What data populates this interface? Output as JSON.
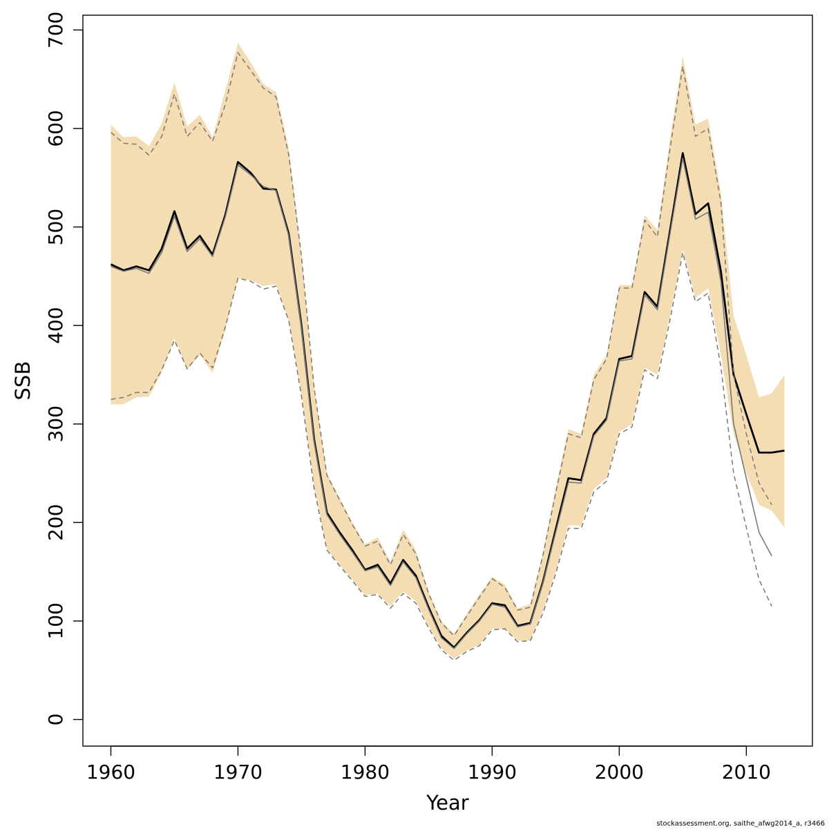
{
  "chart_data": {
    "type": "line",
    "xlabel": "Year",
    "ylabel": "SSB",
    "xlim": [
      1957.8,
      2015.2
    ],
    "ylim": [
      -27,
      715
    ],
    "x_ticks": [
      1960,
      1970,
      1980,
      1990,
      2000,
      2010
    ],
    "y_ticks": [
      0,
      100,
      200,
      300,
      400,
      500,
      600,
      700
    ],
    "grid": false,
    "legend": "none",
    "colors": {
      "band": "#f5ddb3",
      "current": "#000000",
      "previous": "#777777"
    },
    "series": [
      {
        "style": "band",
        "x": [
          1960,
          1961,
          1962,
          1963,
          1964,
          1965,
          1966,
          1967,
          1968,
          1969,
          1970,
          1971,
          1972,
          1973,
          1974,
          1975,
          1976,
          1977,
          1978,
          1979,
          1980,
          1981,
          1982,
          1983,
          1984,
          1985,
          1986,
          1987,
          1988,
          1989,
          1990,
          1991,
          1992,
          1993,
          1994,
          1995,
          1996,
          1997,
          1998,
          1999,
          2000,
          2001,
          2002,
          2003,
          2004,
          2005,
          2006,
          2007,
          2008,
          2009,
          2010,
          2011,
          2012,
          2013
        ],
        "lower": [
          320,
          320,
          327,
          328,
          352,
          387,
          355,
          370,
          352,
          395,
          448,
          446,
          440,
          442,
          405,
          330,
          236,
          173,
          157,
          142,
          126,
          128,
          115,
          130,
          120,
          95,
          72,
          62,
          70,
          76,
          92,
          92,
          80,
          80,
          110,
          150,
          197,
          197,
          234,
          245,
          292,
          300,
          357,
          350,
          410,
          477,
          428,
          438,
          370,
          290,
          250,
          218,
          212,
          195
        ],
        "upper": [
          604,
          591,
          592,
          582,
          605,
          647,
          602,
          614,
          591,
          638,
          687,
          667,
          645,
          637,
          580,
          472,
          338,
          250,
          225,
          200,
          178,
          185,
          160,
          193,
          172,
          130,
          100,
          87,
          107,
          127,
          145,
          137,
          113,
          117,
          170,
          235,
          295,
          290,
          350,
          370,
          441,
          441,
          512,
          497,
          590,
          673,
          604,
          610,
          535,
          410,
          370,
          327,
          331,
          350
        ]
      },
      {
        "style": "solid-thick",
        "x": [
          1960,
          1961,
          1962,
          1963,
          1964,
          1965,
          1966,
          1967,
          1968,
          1969,
          1970,
          1971,
          1972,
          1973,
          1974,
          1975,
          1976,
          1977,
          1978,
          1979,
          1980,
          1981,
          1982,
          1983,
          1984,
          1985,
          1986,
          1987,
          1988,
          1989,
          1990,
          1991,
          1992,
          1993,
          1994,
          1995,
          1996,
          1997,
          1998,
          1999,
          2000,
          2001,
          2002,
          2003,
          2004,
          2005,
          2006,
          2007,
          2008,
          2009,
          2010,
          2011,
          2012,
          2013
        ],
        "y": [
          462,
          456,
          460,
          456,
          478,
          516,
          478,
          491,
          472,
          512,
          566,
          555,
          539,
          538,
          493,
          400,
          284,
          210,
          190,
          172,
          152,
          157,
          138,
          162,
          146,
          114,
          85,
          73,
          88,
          101,
          118,
          116,
          95,
          98,
          140,
          193,
          245,
          243,
          290,
          306,
          366,
          369,
          434,
          419,
          497,
          575,
          513,
          524,
          455,
          350,
          310,
          271,
          271,
          273
        ]
      },
      {
        "style": "solid-thin",
        "x": [
          1960,
          1961,
          1962,
          1963,
          1964,
          1965,
          1966,
          1967,
          1968,
          1969,
          1970,
          1971,
          1972,
          1973,
          1974,
          1975,
          1976,
          1977,
          1978,
          1979,
          1980,
          1981,
          1982,
          1983,
          1984,
          1985,
          1986,
          1987,
          1988,
          1989,
          1990,
          1991,
          1992,
          1993,
          1994,
          1995,
          1996,
          1997,
          1998,
          1999,
          2000,
          2001,
          2002,
          2003,
          2004,
          2005,
          2006,
          2007,
          2008,
          2009,
          2010,
          2011,
          2012
        ],
        "y": [
          460,
          455,
          458,
          453,
          474,
          511,
          475,
          488,
          470,
          510,
          563,
          553,
          541,
          537,
          491,
          398,
          282,
          208,
          188,
          170,
          151,
          155,
          136,
          160,
          144,
          112,
          83,
          72,
          87,
          100,
          117,
          114,
          94,
          97,
          139,
          190,
          241,
          240,
          288,
          304,
          364,
          366,
          431,
          416,
          494,
          570,
          508,
          515,
          445,
          300,
          245,
          190,
          166
        ]
      },
      {
        "style": "dashed-lower",
        "x": [
          1960,
          1961,
          1962,
          1963,
          1964,
          1965,
          1966,
          1967,
          1968,
          1969,
          1970,
          1971,
          1972,
          1973,
          1974,
          1975,
          1976,
          1977,
          1978,
          1979,
          1980,
          1981,
          1982,
          1983,
          1984,
          1985,
          1986,
          1987,
          1988,
          1989,
          1990,
          1991,
          1992,
          1993,
          1994,
          1995,
          1996,
          1997,
          1998,
          1999,
          2000,
          2001,
          2002,
          2003,
          2004,
          2005,
          2006,
          2007,
          2008,
          2009,
          2010,
          2011,
          2012
        ],
        "y": [
          325,
          327,
          332,
          332,
          355,
          385,
          356,
          372,
          357,
          398,
          448,
          445,
          437,
          440,
          405,
          328,
          234,
          172,
          156,
          141,
          125,
          127,
          113,
          128,
          118,
          93,
          71,
          60,
          69,
          75,
          91,
          92,
          79,
          80,
          108,
          148,
          194,
          194,
          231,
          242,
          290,
          297,
          355,
          346,
          406,
          474,
          424,
          433,
          358,
          250,
          195,
          142,
          115
        ]
      },
      {
        "style": "dashed-upper",
        "x": [
          1960,
          1961,
          1962,
          1963,
          1964,
          1965,
          1966,
          1967,
          1968,
          1969,
          1970,
          1971,
          1972,
          1973,
          1974,
          1975,
          1976,
          1977,
          1978,
          1979,
          1980,
          1981,
          1982,
          1983,
          1984,
          1985,
          1986,
          1987,
          1988,
          1989,
          1990,
          1991,
          1992,
          1993,
          1994,
          1995,
          1996,
          1997,
          1998,
          1999,
          2000,
          2001,
          2002,
          2003,
          2004,
          2005,
          2006,
          2007,
          2008,
          2009,
          2010,
          2011,
          2012
        ],
        "y": [
          596,
          585,
          584,
          573,
          592,
          635,
          592,
          606,
          587,
          624,
          677,
          659,
          641,
          632,
          573,
          470,
          336,
          248,
          223,
          198,
          176,
          181,
          157,
          188,
          168,
          128,
          98,
          85,
          105,
          124,
          143,
          134,
          111,
          114,
          167,
          230,
          290,
          286,
          345,
          366,
          438,
          438,
          507,
          490,
          580,
          663,
          592,
          600,
          525,
          350,
          290,
          240,
          218
        ]
      }
    ]
  },
  "caption": "stockassessment.org, saithe_afwg2014_a, r3466"
}
